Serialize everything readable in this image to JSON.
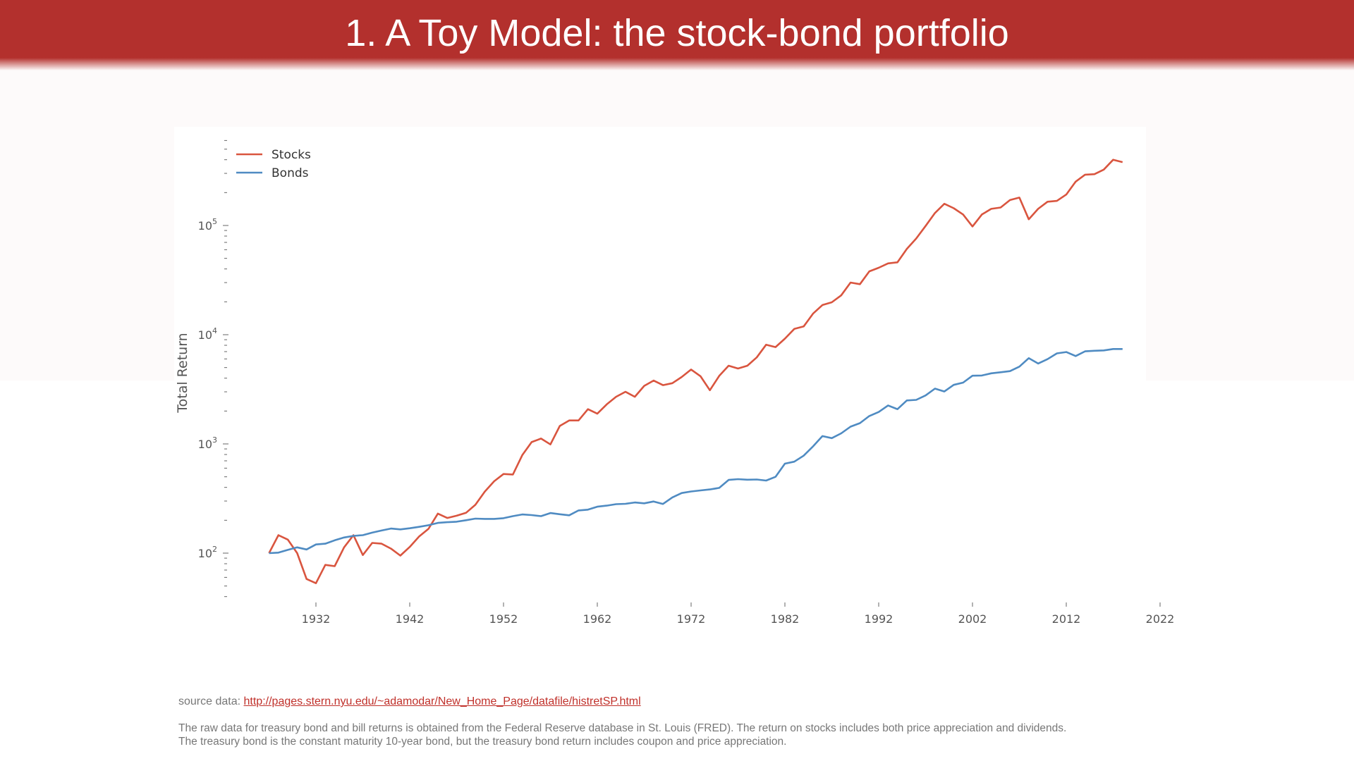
{
  "header": {
    "title": "1. A Toy Model: the stock-bond portfolio"
  },
  "footer": {
    "source_label": "source data:",
    "source_link": "http://pages.stern.nyu.edu/~adamodar/New_Home_Page/datafile/histretSP.html",
    "note_line1": "The raw data for treasury bond and bill returns is obtained from the Federal Reserve database in St. Louis (FRED). The return on stocks includes both price appreciation and dividends.",
    "note_line2": "The treasury bond is the constant maturity 10-year bond, but the treasury bond return includes coupon and price appreciation."
  },
  "chart_data": {
    "type": "line",
    "title": "",
    "xlabel": "",
    "ylabel": "Total Return",
    "yscale": "log",
    "xlim": [
      1923,
      2024
    ],
    "ylim": [
      40,
      600000
    ],
    "xticks": [
      1932,
      1942,
      1952,
      1962,
      1972,
      1982,
      1992,
      2002,
      2012,
      2022
    ],
    "yticks": [
      {
        "value": 100,
        "base": "10",
        "exp": "2"
      },
      {
        "value": 1000,
        "base": "10",
        "exp": "3"
      },
      {
        "value": 10000,
        "base": "10",
        "exp": "4"
      },
      {
        "value": 100000,
        "base": "10",
        "exp": "5"
      }
    ],
    "grid": false,
    "legend_position": "top-left",
    "x_start": 1927,
    "series": [
      {
        "name": "Stocks",
        "color": "#d9553f",
        "values": [
          100,
          146,
          133,
          100,
          58,
          53,
          78,
          76,
          113,
          146,
          96,
          124,
          122,
          110,
          95,
          114,
          142,
          167,
          230,
          210,
          220,
          234,
          277,
          365,
          455,
          530,
          525,
          790,
          1040,
          1120,
          990,
          1460,
          1640,
          1640,
          2080,
          1890,
          2300,
          2700,
          3000,
          2700,
          3400,
          3800,
          3450,
          3600,
          4100,
          4800,
          4170,
          3100,
          4200,
          5200,
          4900,
          5200,
          6200,
          8100,
          7700,
          9200,
          11300,
          11900,
          15600,
          18700,
          19800,
          22900,
          30000,
          29000,
          38000,
          41000,
          45000,
          46000,
          61000,
          76000,
          99000,
          130000,
          158000,
          144000,
          126000,
          98000,
          126000,
          142000,
          146000,
          171000,
          180000,
          114000,
          142000,
          165000,
          168000,
          192000,
          252000,
          292000,
          295000,
          325000,
          400000,
          380000
        ]
      },
      {
        "name": "Bonds",
        "color": "#4f8bc2",
        "values": [
          100,
          101,
          107,
          113,
          108,
          120,
          122,
          131,
          139,
          144,
          146,
          154,
          161,
          168,
          165,
          169,
          174,
          180,
          189,
          192,
          194,
          200,
          207,
          206,
          206,
          209,
          218,
          226,
          223,
          218,
          233,
          227,
          222,
          246,
          250,
          266,
          272,
          281,
          283,
          291,
          286,
          297,
          282,
          324,
          355,
          367,
          375,
          383,
          396,
          468,
          476,
          470,
          472,
          462,
          500,
          660,
          688,
          780,
          950,
          1180,
          1130,
          1250,
          1440,
          1550,
          1800,
          1960,
          2250,
          2080,
          2500,
          2530,
          2780,
          3210,
          3020,
          3470,
          3640,
          4210,
          4230,
          4430,
          4530,
          4640,
          5100,
          6100,
          5450,
          5970,
          6750,
          6940,
          6380,
          7040,
          7130,
          7180,
          7400,
          7400
        ]
      }
    ]
  }
}
